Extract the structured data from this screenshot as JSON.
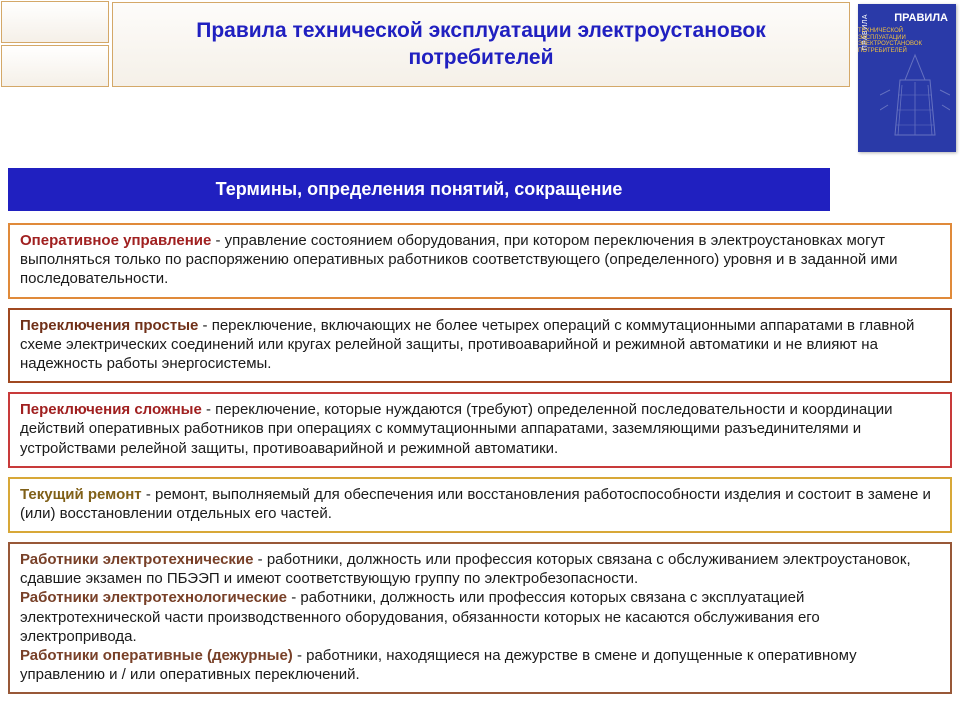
{
  "title": "Правила технической эксплуатации электроустановок потребителей",
  "subtitle": "Термины, определения понятий, сокращение",
  "book": {
    "title": "ПРАВИЛА",
    "sub": "ТЕХНИЧЕСКОЙ\nЭКСПЛУАТАЦИИ\nЭЛЕКТРОУСТАНОВОК\nПОТРЕБИТЕЛЕЙ",
    "spine": "ПРАВИЛА"
  },
  "boxes": [
    {
      "border_color": "#e08a3a",
      "term_color": "#a02020",
      "parts": [
        {
          "term": "Оперативное управление",
          "body": " - управление состоянием оборудования, при котором переключения в электроустановках могут выполняться только по распоряжению оперативных работников соответствующего (определенного) уровня и в заданной ими последовательности."
        }
      ]
    },
    {
      "border_color": "#a04820",
      "term_color": "#703018",
      "parts": [
        {
          "term": "Переключения простые",
          "body": " - переключение, включающих не более четырех операций с коммутационными аппаратами в главной схеме электрических соединений или кругах релейной защиты, противоаварийной и режимной автоматики и не влияют на надежность работы энергосистемы."
        }
      ]
    },
    {
      "border_color": "#c83a3a",
      "term_color": "#a02020",
      "parts": [
        {
          "term": "Переключения сложные",
          "body": " - переключение, которые нуждаются (требуют) определенной последовательности и координации действий оперативных работников при операциях с коммутационными аппаратами, заземляющими разъединителями и устройствами релейной защиты, противоаварийной и режимной автоматики."
        }
      ]
    },
    {
      "border_color": "#d8a838",
      "term_color": "#806018",
      "parts": [
        {
          "term": "Текущий ремонт",
          "body": " - ремонт, выполняемый для обеспечения или восстановления работоспособности изделия и состоит в замене и (или) восстановлении отдельных его частей."
        }
      ]
    },
    {
      "border_color": "#985838",
      "term_color": "#784028",
      "parts": [
        {
          "term": "Работники электротехнические",
          "body": " - работники, должность или профессия которых связана с обслуживанием электроустановок, сдавшие экзамен по ПБЭЭП и имеют соответствующую группу по электробезопасности."
        },
        {
          "term": "Работники электротехнологические",
          "body": " - работники, должность или профессия которых связана с эксплуатацией электротехнической части производственного оборудования, обязанности которых не касаются обслуживания его электропривода."
        },
        {
          "term": "Работники оперативные (дежурные)",
          "body": " - работники, находящиеся на дежурстве в смене и допущенные к оперативному управлению и / или оперативных переключений."
        }
      ]
    }
  ],
  "colors": {
    "title_text": "#2020c0",
    "subtitle_bg": "#2020c0",
    "subtitle_text": "#ffffff"
  }
}
